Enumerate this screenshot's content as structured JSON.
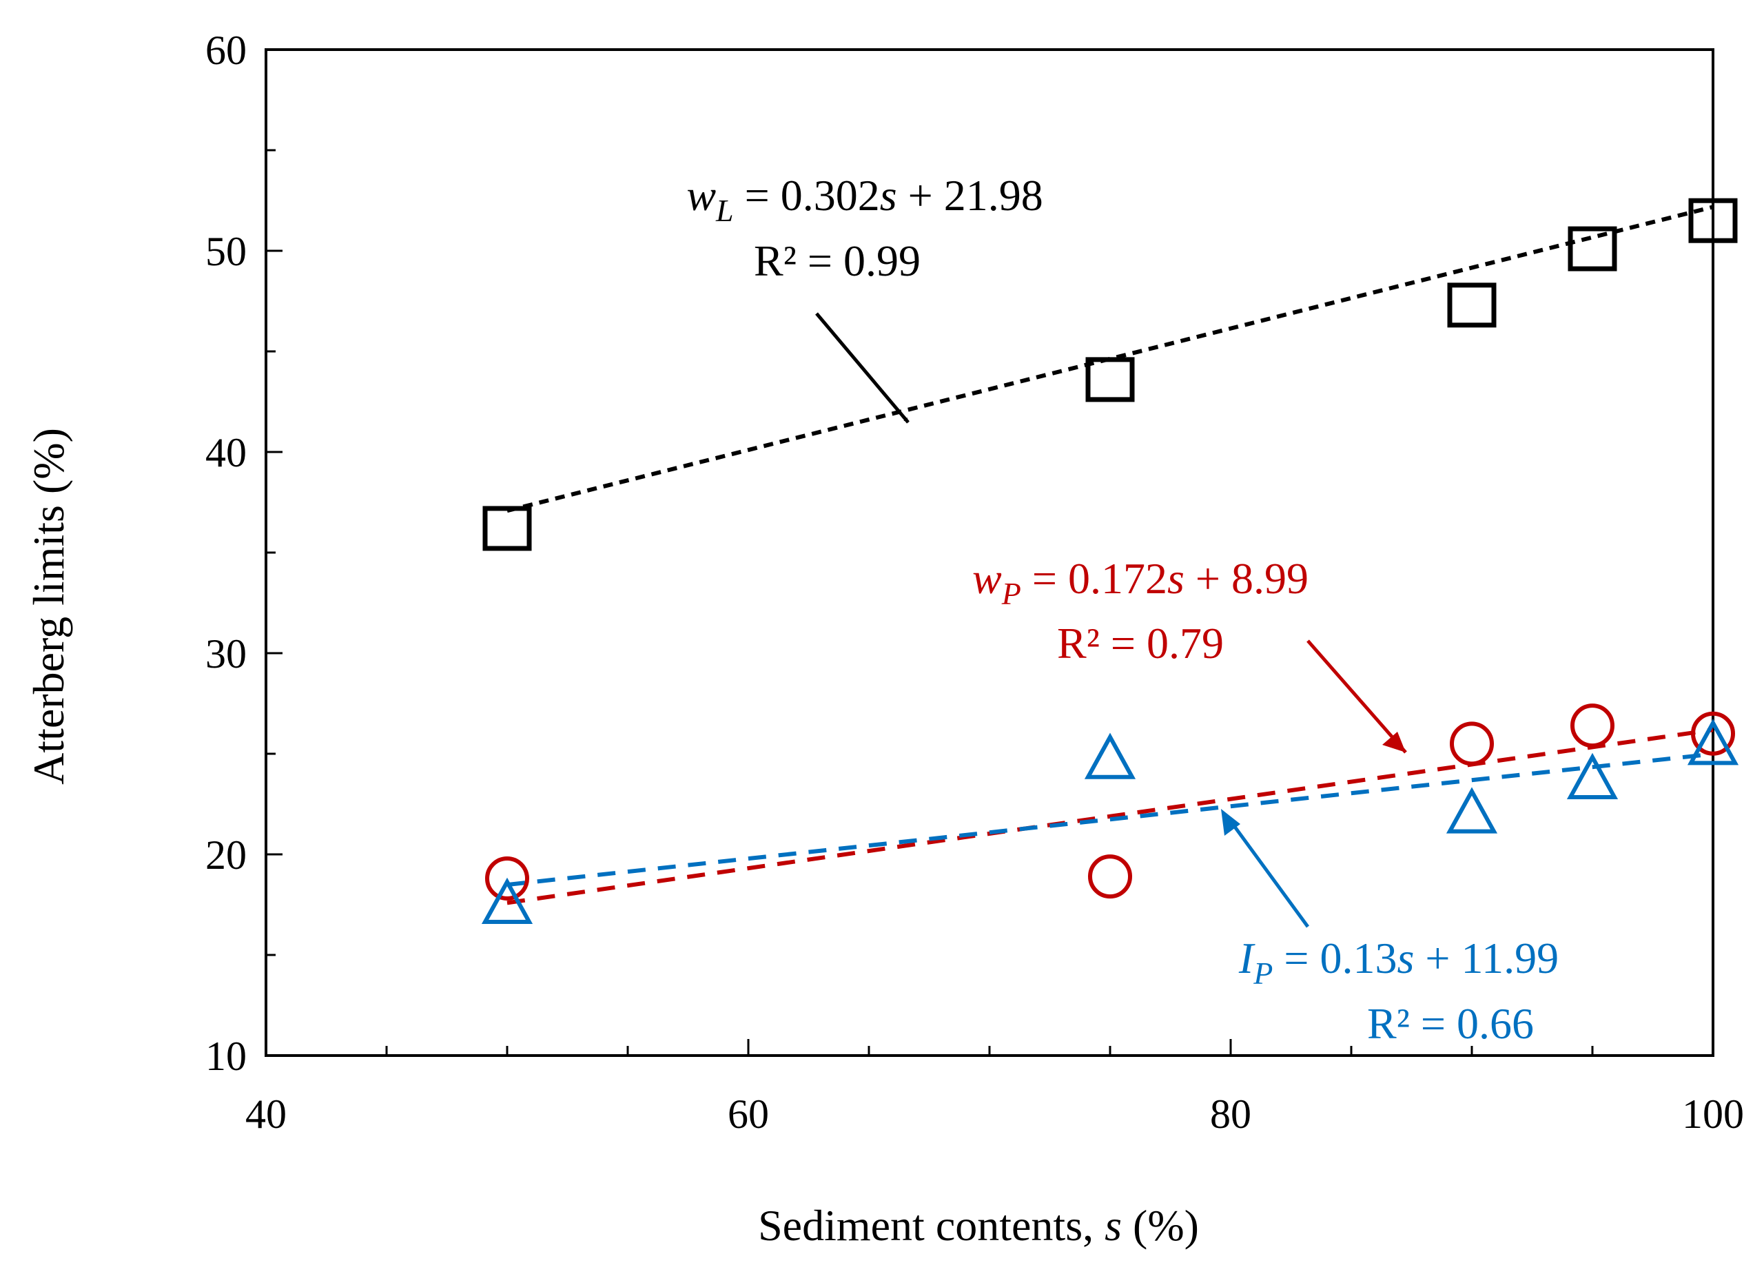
{
  "chart_data": {
    "type": "scatter",
    "xlabel": {
      "prefix": "Sediment contents, ",
      "var": "s",
      "suffix": " (%)"
    },
    "ylabel": "Atterberg limits (%)",
    "xlim": [
      40,
      100
    ],
    "ylim": [
      10,
      60
    ],
    "x_major_ticks": [
      40,
      60,
      80,
      100
    ],
    "x_minor_ticks": [
      45,
      50,
      55,
      65,
      70,
      75,
      85,
      90,
      95
    ],
    "y_major_ticks": [
      10,
      20,
      30,
      40,
      50,
      60
    ],
    "y_minor_ticks": [
      15,
      25,
      35,
      45,
      55
    ],
    "grid": false,
    "series": [
      {
        "name": "wL",
        "marker": "square",
        "color": "#000000",
        "x": [
          50,
          75,
          90,
          95,
          100
        ],
        "y": [
          36.2,
          43.6,
          47.3,
          50.1,
          51.5
        ],
        "fit": {
          "slope": 0.302,
          "intercept": 21.98,
          "x_range": [
            50,
            100
          ]
        },
        "equation": {
          "var": "w",
          "sub": "L",
          "rhs": " = 0.302",
          "rvar": "s",
          "const": " + 21.98",
          "r2": "R² = 0.99"
        }
      },
      {
        "name": "wP",
        "marker": "circle",
        "color": "#C00000",
        "x": [
          50,
          75,
          90,
          95,
          100
        ],
        "y": [
          18.8,
          18.9,
          25.5,
          26.4,
          26.0
        ],
        "fit": {
          "slope": 0.172,
          "intercept": 8.99,
          "x_range": [
            50,
            100
          ]
        },
        "equation": {
          "var": "w",
          "sub": "P",
          "rhs": " = 0.172",
          "rvar": "s",
          "const": " + 8.99",
          "r2": "R² = 0.79"
        }
      },
      {
        "name": "IP",
        "marker": "triangle",
        "color": "#0070C0",
        "x": [
          50,
          75,
          90,
          95,
          100
        ],
        "y": [
          17.5,
          24.7,
          22.0,
          23.7,
          25.4
        ],
        "fit": {
          "slope": 0.13,
          "intercept": 11.99,
          "x_range": [
            50,
            100
          ]
        },
        "equation": {
          "var": "I",
          "sub": "P",
          "rhs": " = 0.13",
          "rvar": "s",
          "const": " + 11.99",
          "r2": "R² = 0.66"
        }
      }
    ]
  }
}
